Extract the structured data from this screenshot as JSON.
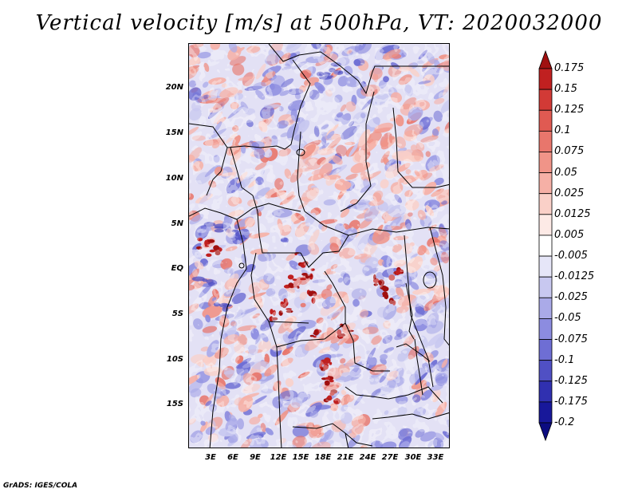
{
  "title": "Vertical velocity [m/s] at 500hPa, VT: 2020032000",
  "map": {
    "lat_labels": [
      "20N",
      "15N",
      "10N",
      "5N",
      "EQ",
      "5S",
      "10S",
      "15S"
    ],
    "lon_labels": [
      "3E",
      "6E",
      "9E",
      "12E",
      "15E",
      "18E",
      "21E",
      "24E",
      "27E",
      "30E",
      "33E"
    ]
  },
  "colorbar": {
    "labels": [
      "0.175",
      "0.15",
      "0.125",
      "0.1",
      "0.075",
      "0.05",
      "0.025",
      "0.0125",
      "0.005",
      "-0.005",
      "-0.0125",
      "-0.025",
      "-0.05",
      "-0.075",
      "-0.1",
      "-0.125",
      "-0.175",
      "-0.2"
    ],
    "colors": [
      "#a01010",
      "#c02020",
      "#d23a36",
      "#e05a52",
      "#e8766c",
      "#f09488",
      "#f6b0a6",
      "#fad0c8",
      "#fdeae6",
      "#ffffff",
      "#e6e6f8",
      "#c8c8f0",
      "#aaaae8",
      "#8c8ce0",
      "#6e6ed4",
      "#5050c4",
      "#3030b0",
      "#18189a",
      "#0c0c80"
    ]
  },
  "credit": "GrADS: IGES/COLA"
}
